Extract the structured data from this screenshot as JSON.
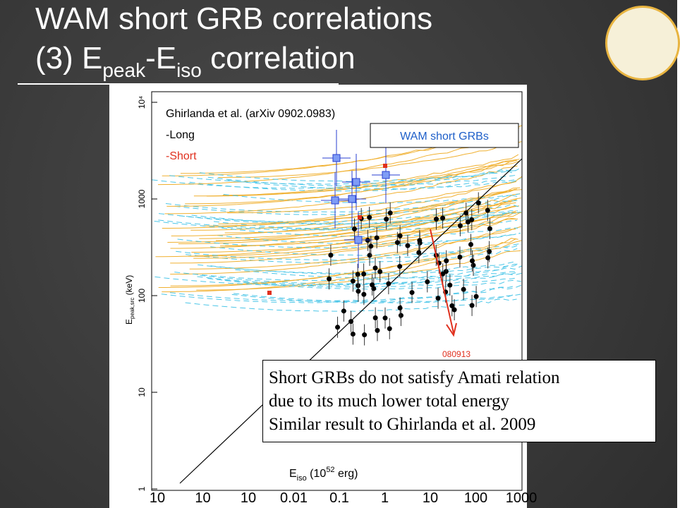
{
  "title": {
    "line1": "WAM short GRB correlations",
    "line2": [
      "(3) E",
      "peak",
      "-E",
      "iso",
      " correlation"
    ]
  },
  "figure": {
    "legend": [
      "Ghirlanda et al. (arXiv 0902.0983)",
      "-Long",
      "-Short"
    ],
    "box_label": "WAM short GRBs",
    "annotation": "080913",
    "y_label": [
      "E",
      "peak,src",
      " (keV)"
    ],
    "y_ticks": [
      "10⁴",
      "1000",
      "100",
      "10",
      "1"
    ],
    "x_label": [
      "E",
      "iso",
      " (10",
      "52",
      " erg)"
    ],
    "x_ticks": [
      "10",
      "10",
      "10",
      "0.01",
      "0.1",
      "1",
      "10",
      "100",
      "1000"
    ]
  },
  "note": [
    "Short GRBs do not satisfy Amati relation",
    "due to its much lower total energy",
    "Similar result to Ghirlanda et al. 2009"
  ]
}
